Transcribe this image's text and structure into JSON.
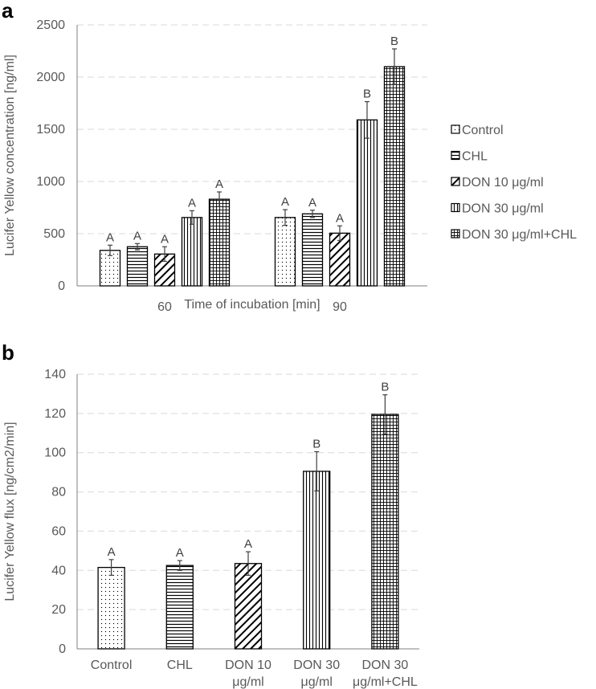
{
  "chart_data": [
    {
      "panel": "a",
      "type": "bar",
      "xlabel": "Time of incubation [min]",
      "ylabel": "Lucifer Yellow concentration [ng/ml]",
      "ylim": [
        0,
        2500
      ],
      "yticks": [
        "0",
        "500",
        "1000",
        "1500",
        "2000",
        "2500"
      ],
      "categories": [
        "60",
        "90"
      ],
      "legend_position": "right",
      "grid": true,
      "series": [
        {
          "name": "Control",
          "pattern": "dots",
          "values": [
            340,
            655
          ],
          "errors": [
            50,
            75
          ],
          "labels": [
            "A",
            "A"
          ]
        },
        {
          "name": "CHL",
          "pattern": "hlines",
          "values": [
            375,
            690
          ],
          "errors": [
            30,
            35
          ],
          "labels": [
            "A",
            "A"
          ]
        },
        {
          "name": "DON 10 μg/ml",
          "pattern": "diag",
          "values": [
            305,
            505
          ],
          "errors": [
            70,
            70
          ],
          "labels": [
            "A",
            "A"
          ]
        },
        {
          "name": "DON 30 μg/ml",
          "pattern": "vlines",
          "values": [
            655,
            1590
          ],
          "errors": [
            65,
            175
          ],
          "labels": [
            "A",
            "B"
          ]
        },
        {
          "name": "DON 30 μg/ml+CHL",
          "pattern": "grid",
          "values": [
            830,
            2100
          ],
          "errors": [
            70,
            170
          ],
          "labels": [
            "A",
            "B"
          ]
        }
      ]
    },
    {
      "panel": "b",
      "type": "bar",
      "xlabel": "",
      "ylabel": "Lucifer Yellow flux [ng/cm2/min]",
      "ylim": [
        0,
        140
      ],
      "yticks": [
        "0",
        "20",
        "40",
        "60",
        "80",
        "100",
        "120",
        "140"
      ],
      "categories": [
        [
          "Control"
        ],
        [
          "CHL"
        ],
        [
          "DON 10",
          "μg/ml"
        ],
        [
          "DON 30",
          "μg/ml"
        ],
        [
          "DON 30",
          "μg/ml+CHL"
        ]
      ],
      "grid": true,
      "values": [
        41.5,
        42.5,
        43.5,
        90.5,
        119.5
      ],
      "errors": [
        4,
        2.5,
        6,
        10,
        10
      ],
      "labels": [
        "A",
        "A",
        "A",
        "B",
        "B"
      ],
      "patterns": [
        "dots",
        "hlines",
        "diag",
        "vlines",
        "grid"
      ]
    }
  ]
}
